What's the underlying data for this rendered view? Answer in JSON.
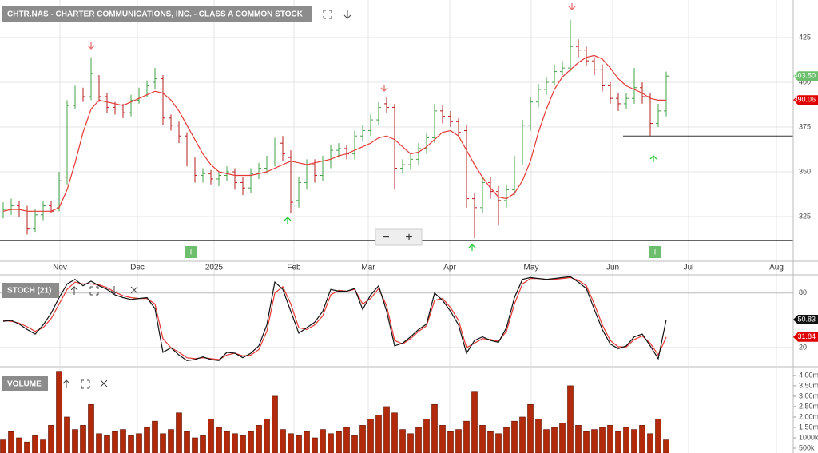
{
  "chart_data": [
    {
      "type": "ohlc",
      "title": "CHTR.NAS - CHARTER COMMUNICATIONS, INC. - CLASS A COMMON STOCK",
      "up_color": "#43a047",
      "down_color": "#b71c1c",
      "open": [
        327,
        329,
        331,
        327,
        318,
        326,
        331,
        330,
        347,
        387,
        394,
        392,
        403,
        392,
        386,
        385,
        383,
        390,
        394,
        400,
        402,
        380,
        376,
        370,
        356,
        348,
        349,
        346,
        348,
        350,
        344,
        341,
        349,
        352,
        356,
        366,
        358,
        334,
        344,
        354,
        348,
        356,
        362,
        363,
        360,
        370,
        373,
        379,
        388,
        386,
        352,
        354,
        357,
        363,
        369,
        384,
        381,
        378,
        373,
        335,
        330,
        344,
        339,
        334,
        340,
        356,
        376,
        389,
        396,
        400,
        406,
        408,
        420,
        418,
        412,
        407,
        398,
        391,
        388,
        391,
        397,
        392,
        377,
        384
      ],
      "high": [
        333,
        335,
        334,
        331,
        329,
        334,
        334,
        350,
        390,
        398,
        397,
        414,
        404,
        394,
        389,
        388,
        393,
        397,
        401,
        408,
        404,
        382,
        378,
        372,
        358,
        352,
        351,
        350,
        353,
        352,
        347,
        352,
        355,
        359,
        369,
        370,
        362,
        347,
        357,
        357,
        359,
        365,
        366,
        365,
        373,
        376,
        382,
        389,
        392,
        388,
        357,
        360,
        366,
        372,
        388,
        387,
        384,
        380,
        376,
        338,
        347,
        347,
        342,
        343,
        359,
        379,
        392,
        399,
        403,
        410,
        412,
        435,
        424,
        420,
        414,
        410,
        400,
        394,
        394,
        408,
        400,
        394,
        388,
        406
      ],
      "low": [
        324,
        326,
        325,
        315,
        316,
        323,
        327,
        328,
        343,
        385,
        389,
        390,
        389,
        383,
        382,
        380,
        381,
        388,
        392,
        396,
        376,
        373,
        366,
        353,
        344,
        344,
        343,
        342,
        345,
        340,
        337,
        338,
        346,
        349,
        353,
        356,
        327,
        330,
        340,
        344,
        345,
        352,
        358,
        357,
        357,
        367,
        370,
        376,
        383,
        340,
        349,
        351,
        354,
        360,
        366,
        377,
        375,
        370,
        330,
        313,
        327,
        335,
        320,
        330,
        337,
        354,
        373,
        386,
        393,
        398,
        404,
        406,
        414,
        409,
        404,
        395,
        388,
        384,
        385,
        388,
        388,
        370,
        375,
        381
      ],
      "close": [
        329,
        331,
        327,
        318,
        326,
        331,
        328,
        345,
        387,
        394,
        392,
        405,
        392,
        386,
        385,
        383,
        390,
        394,
        398,
        402,
        380,
        376,
        370,
        356,
        348,
        349,
        346,
        348,
        350,
        344,
        341,
        349,
        352,
        356,
        365,
        360,
        333,
        344,
        354,
        348,
        356,
        362,
        363,
        360,
        370,
        373,
        379,
        386,
        386,
        352,
        354,
        357,
        363,
        369,
        384,
        381,
        378,
        372,
        335,
        330,
        344,
        339,
        334,
        340,
        356,
        376,
        389,
        396,
        400,
        406,
        408,
        420,
        418,
        412,
        407,
        398,
        391,
        388,
        391,
        397,
        392,
        377,
        384,
        403.5
      ],
      "last_label": "403.50",
      "ma": {
        "color": "#e53935",
        "last_label": "390.06",
        "values": [
          328,
          329,
          329,
          328,
          328,
          328,
          328,
          330,
          340,
          355,
          372,
          385,
          390,
          389,
          388,
          387,
          389,
          391,
          393,
          395,
          394,
          390,
          384,
          376,
          368,
          360,
          354,
          350,
          349,
          348,
          348,
          348,
          349,
          350,
          352,
          354,
          356,
          355,
          354,
          355,
          356,
          357,
          359,
          360,
          362,
          364,
          366,
          369,
          370,
          368,
          364,
          360,
          361,
          364,
          368,
          372,
          373,
          370,
          362,
          354,
          347,
          341,
          336,
          335,
          338,
          345,
          356,
          372,
          385,
          396,
          403,
          407,
          411,
          414,
          415,
          413,
          408,
          402,
          398,
          396,
          394,
          391,
          390,
          390.06
        ]
      },
      "levels": [
        {
          "value": 311.5,
          "x0": -0.4
        },
        {
          "value": 370,
          "x0": 77.6
        }
      ],
      "markers": [
        {
          "label": "I",
          "x": 23.5
        },
        {
          "label": "I",
          "x": 81.6
        }
      ],
      "xlim": [
        -0.4,
        98.9
      ],
      "xticks": [
        {
          "value": 7.1,
          "label": "Nov"
        },
        {
          "value": 16.8,
          "label": "Dec"
        },
        {
          "value": 26.4,
          "label": "2025"
        },
        {
          "value": 36.4,
          "label": "Feb"
        },
        {
          "value": 45.7,
          "label": "Mar"
        },
        {
          "value": 55.9,
          "label": "Apr"
        },
        {
          "value": 66.1,
          "label": "May"
        },
        {
          "value": 76.3,
          "label": "Jun"
        },
        {
          "value": 85.8,
          "label": "Jul"
        },
        {
          "value": 96.8,
          "label": "Aug"
        }
      ],
      "ylim": [
        300,
        446
      ],
      "yticks": [
        325,
        350,
        375,
        400,
        425
      ],
      "grid": true
    },
    {
      "type": "stoch",
      "title": "STOCH (21)",
      "series": [
        {
          "color": "#e53935",
          "last_label": "31.84",
          "values": [
            50,
            49,
            47,
            43,
            38,
            42,
            52,
            68,
            84,
            92,
            90,
            90,
            89,
            86,
            81,
            77,
            75,
            74,
            74,
            68,
            30,
            20,
            15,
            9,
            8,
            9,
            8,
            7,
            12,
            14,
            11,
            12,
            18,
            38,
            80,
            87,
            68,
            42,
            40,
            45,
            55,
            78,
            83,
            82,
            84,
            68,
            74,
            85,
            66,
            28,
            24,
            30,
            38,
            44,
            72,
            74,
            64,
            50,
            20,
            25,
            30,
            29,
            27,
            38,
            68,
            90,
            96,
            96,
            95,
            95,
            96,
            97,
            94,
            88,
            68,
            45,
            28,
            21,
            21,
            29,
            33,
            25,
            12,
            31.84
          ]
        },
        {
          "color": "#111111",
          "last_label": "50.83",
          "values": [
            49,
            50,
            46,
            40,
            35,
            45,
            58,
            75,
            90,
            95,
            88,
            93,
            88,
            84,
            78,
            75,
            73,
            74,
            75,
            63,
            15,
            20,
            12,
            6,
            7,
            10,
            7,
            6,
            15,
            14,
            9,
            14,
            22,
            45,
            92,
            84,
            60,
            36,
            42,
            48,
            60,
            84,
            82,
            82,
            85,
            62,
            78,
            88,
            60,
            22,
            25,
            32,
            40,
            46,
            80,
            72,
            60,
            45,
            14,
            28,
            32,
            28,
            26,
            42,
            75,
            95,
            97,
            96,
            95,
            96,
            97,
            98,
            92,
            85,
            62,
            40,
            24,
            19,
            22,
            32,
            35,
            22,
            8,
            50.83
          ]
        }
      ],
      "xlim": [
        -0.4,
        98.9
      ],
      "ylim": [
        0,
        100
      ],
      "yticks": [
        20,
        80
      ],
      "grid": true
    },
    {
      "type": "volume",
      "title": "VOLUME",
      "color": "#b22a0a",
      "values": [
        900000,
        1300000,
        1000000,
        800000,
        1100000,
        900000,
        1600000,
        4200000,
        2000000,
        1400000,
        1600000,
        2600000,
        1200000,
        1100000,
        1300000,
        1400000,
        1100000,
        1200000,
        1500000,
        1800000,
        1200000,
        1400000,
        2200000,
        1300000,
        1000000,
        1100000,
        1900000,
        1500000,
        1300000,
        1200000,
        1100000,
        1300000,
        1600000,
        1900000,
        3000000,
        1400000,
        1200000,
        1100000,
        1300000,
        1000000,
        1400000,
        1200000,
        1300000,
        1500000,
        1100000,
        1600000,
        1900000,
        2100000,
        2500000,
        2200000,
        1400000,
        1200000,
        1500000,
        1900000,
        2600000,
        1600000,
        1300000,
        1400000,
        1800000,
        3200000,
        1600000,
        1300000,
        1200000,
        1500000,
        1800000,
        2000000,
        2600000,
        1900000,
        1400000,
        1500000,
        1700000,
        3500000,
        1600000,
        1300000,
        1400000,
        1500000,
        1600000,
        1300000,
        1500000,
        1400000,
        1600000,
        1200000,
        1900000,
        900000
      ],
      "xlim": [
        -0.4,
        98.9
      ],
      "ylim": [
        270000,
        4380000
      ],
      "yticks": [
        {
          "value": 500000,
          "label": "500k"
        },
        {
          "value": 1000000,
          "label": "1000k"
        },
        {
          "value": 1500000,
          "label": "1.50m"
        },
        {
          "value": 2000000,
          "label": "2.00m"
        },
        {
          "value": 2500000,
          "label": "2.50m"
        },
        {
          "value": 3000000,
          "label": "3.00m"
        },
        {
          "value": 3500000,
          "label": "3.50m"
        },
        {
          "value": 4000000,
          "label": "4.00m"
        }
      ],
      "grid": false
    }
  ],
  "controls": {
    "zoom_out": "−",
    "zoom_in": "+"
  }
}
